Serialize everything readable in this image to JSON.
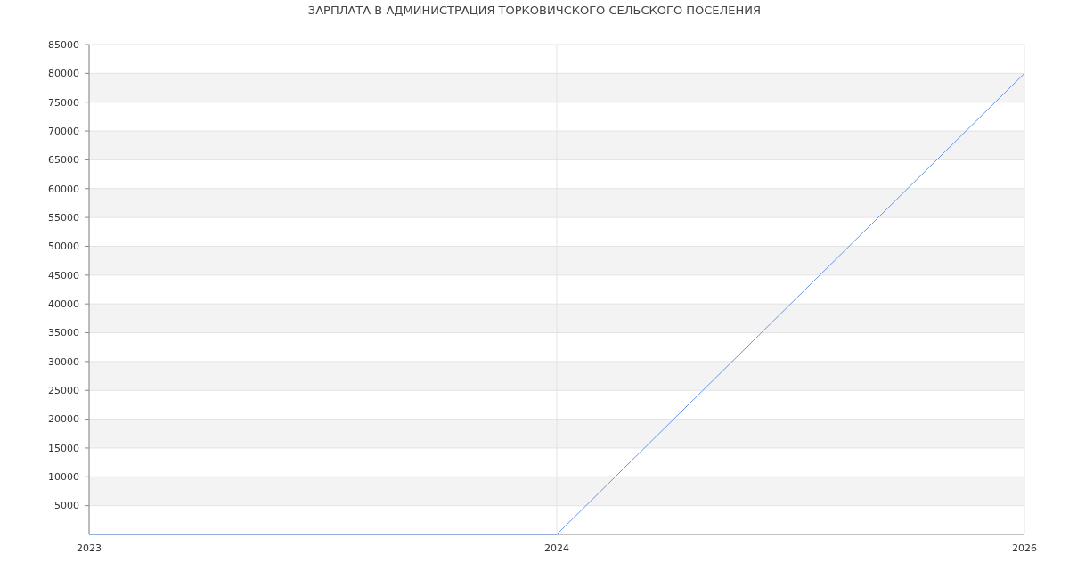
{
  "chart_data": {
    "type": "line",
    "title": "ЗАРПЛАТА В АДМИНИСТРАЦИЯ ТОРКОВИЧСКОГО СЕЛЬСКОГО ПОСЕЛЕНИЯ",
    "categories": [
      "2023",
      "2024",
      "2026"
    ],
    "series": [
      {
        "color": "#6495ed",
        "values": [
          0,
          0,
          80000
        ]
      }
    ],
    "ylim": [
      0,
      85000
    ],
    "yticks": [
      5000,
      10000,
      15000,
      20000,
      25000,
      30000,
      35000,
      40000,
      45000,
      50000,
      55000,
      60000,
      65000,
      70000,
      75000,
      80000,
      85000
    ],
    "grid": true,
    "marker": "none",
    "line_style": "solid"
  }
}
